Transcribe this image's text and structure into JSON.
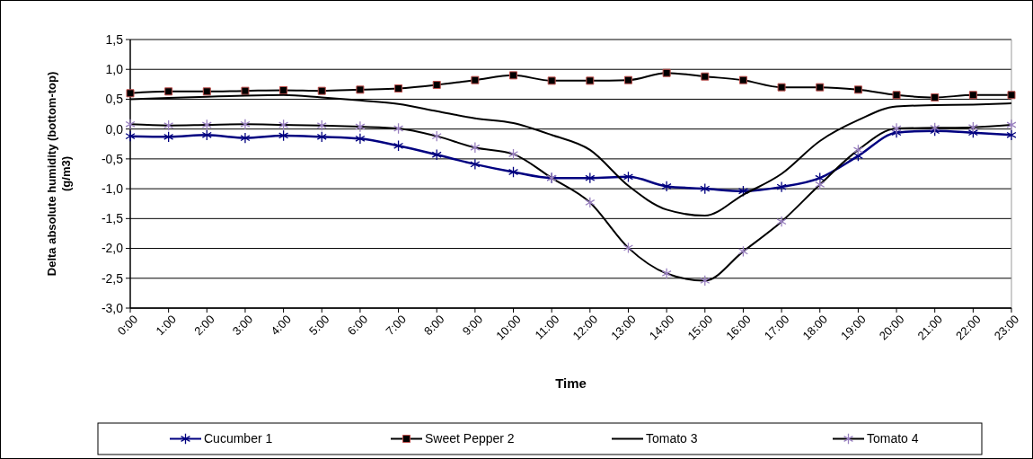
{
  "chart_data": {
    "type": "line",
    "xlabel": "Time",
    "ylabel": "Delta absolute humidity (bottom-top)\n(g/m3)",
    "categories": [
      "0:00",
      "1:00",
      "2:00",
      "3:00",
      "4:00",
      "5:00",
      "6:00",
      "7:00",
      "8:00",
      "9:00",
      "10:00",
      "11:00",
      "12:00",
      "13:00",
      "14:00",
      "15:00",
      "16:00",
      "17:00",
      "18:00",
      "19:00",
      "20:00",
      "21:00",
      "22:00",
      "23:00"
    ],
    "series": [
      {
        "name": "Cucumber 1",
        "color": "#000080",
        "marker": "cross",
        "values": [
          -0.12,
          -0.13,
          -0.1,
          -0.15,
          -0.11,
          -0.13,
          -0.16,
          -0.28,
          -0.43,
          -0.59,
          -0.72,
          -0.82,
          -0.82,
          -0.8,
          -0.96,
          -1.0,
          -1.04,
          -0.97,
          -0.82,
          -0.45,
          -0.06,
          -0.03,
          -0.06,
          -0.1
        ]
      },
      {
        "name": "Sweet Pepper 2",
        "color": "#000000",
        "marker": "square",
        "values": [
          0.6,
          0.63,
          0.63,
          0.64,
          0.65,
          0.64,
          0.66,
          0.68,
          0.74,
          0.82,
          0.9,
          0.81,
          0.81,
          0.82,
          0.94,
          0.88,
          0.82,
          0.7,
          0.7,
          0.66,
          0.57,
          0.53,
          0.57,
          0.57
        ]
      },
      {
        "name": "Tomato 3",
        "color": "#000000",
        "marker": "none",
        "values": [
          0.5,
          0.52,
          0.54,
          0.56,
          0.57,
          0.53,
          0.48,
          0.42,
          0.3,
          0.18,
          0.1,
          -0.1,
          -0.35,
          -0.95,
          -1.35,
          -1.45,
          -1.1,
          -0.75,
          -0.2,
          0.15,
          0.38,
          0.4,
          0.41,
          0.43
        ]
      },
      {
        "name": "Tomato 4",
        "color": "#000000",
        "marker": "cross",
        "values": [
          0.08,
          0.06,
          0.07,
          0.08,
          0.07,
          0.06,
          0.04,
          0.01,
          -0.12,
          -0.31,
          -0.42,
          -0.82,
          -1.23,
          -1.99,
          -2.42,
          -2.54,
          -2.05,
          -1.55,
          -0.93,
          -0.35,
          0.01,
          0.02,
          0.03,
          0.07
        ]
      }
    ],
    "ylim": [
      -3.0,
      1.5
    ],
    "yticks": [
      {
        "value": 1.5,
        "label": "1,5"
      },
      {
        "value": 1.0,
        "label": "1,0"
      },
      {
        "value": 0.5,
        "label": "0,5"
      },
      {
        "value": 0,
        "label": "0,0"
      },
      {
        "value": -0.5,
        "label": "-0,5"
      },
      {
        "value": -1.0,
        "label": "-1,0"
      },
      {
        "value": -1.5,
        "label": "-1,5"
      },
      {
        "value": -2.0,
        "label": "-2,0"
      },
      {
        "value": -2.5,
        "label": "-2,5"
      },
      {
        "value": -3.0,
        "label": "-3,0"
      }
    ],
    "grid": "y",
    "legend": "bottom",
    "line_style": "solid"
  }
}
